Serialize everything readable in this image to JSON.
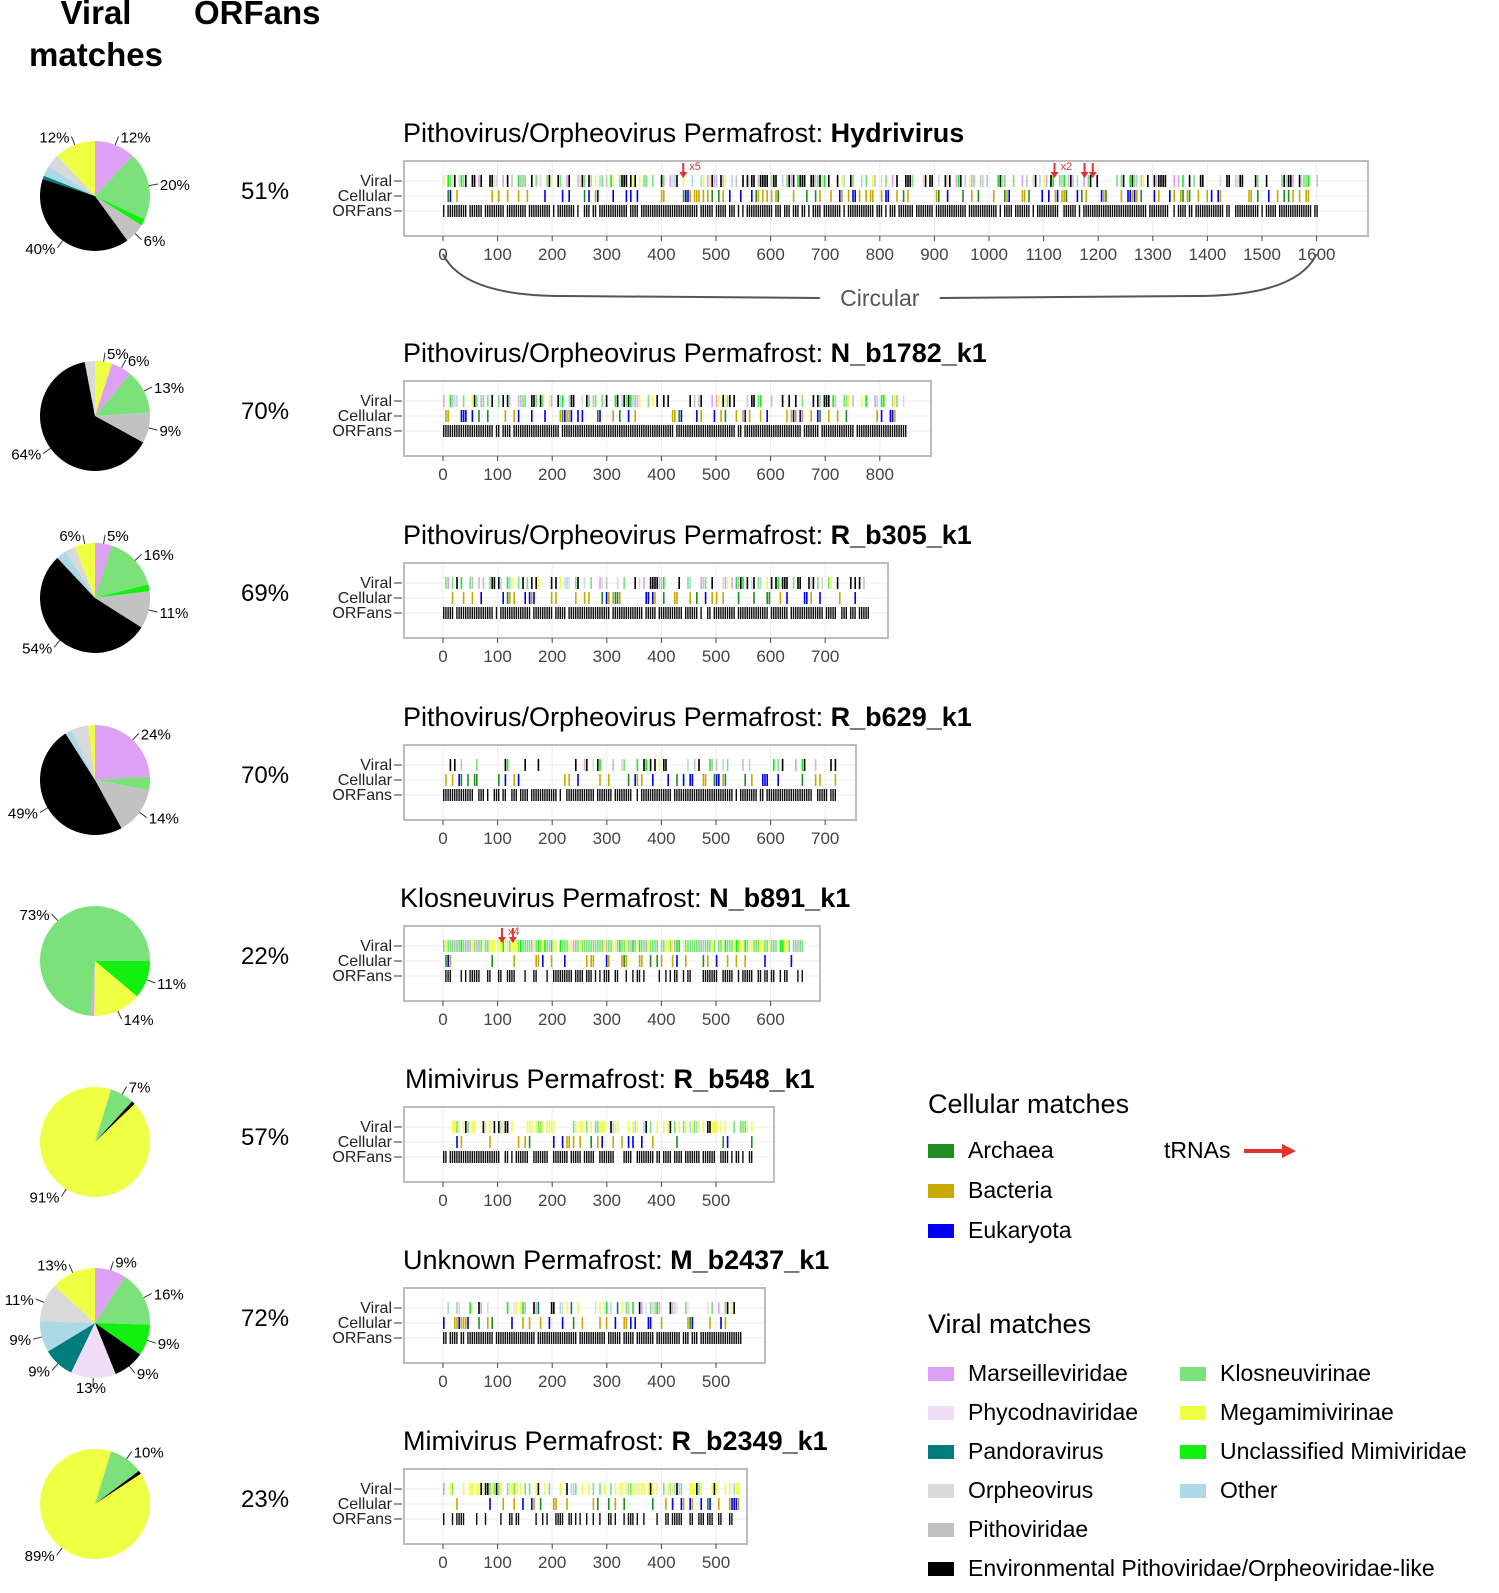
{
  "headers": {
    "viral_matches": "Viral\nmatches",
    "orfans": "ORFans"
  },
  "track_labels": [
    "Viral",
    "Cellular",
    "ORFans"
  ],
  "circular_label": "Circular",
  "colors": {
    "Archaea": "#228b22",
    "Bacteria": "#c9a800",
    "Eukaryota": "#0000ee",
    "Marseilleviridae": "#dda0f5",
    "Phycodnaviridae": "#f1ddf7",
    "Pandoravirus": "#007c7c",
    "Orpheovirus": "#d9d9d9",
    "Pithoviridae": "#c2c2c2",
    "Environmental Pithoviridae/Orpheoviridae-like": "#000000",
    "Klosneuvirinae": "#7be27b",
    "Megamimivirinae": "#eeff44",
    "Unclassified Mimiviridae": "#12f012",
    "Other": "#add8e6",
    "tRNA": "#e53030"
  },
  "legend": {
    "cellular_title": "Cellular matches",
    "cellular": [
      "Archaea",
      "Bacteria",
      "Eukaryota"
    ],
    "trna_label": "tRNAs",
    "viral_title": "Viral matches",
    "viral_left": [
      "Marseilleviridae",
      "Phycodnaviridae",
      "Pandoravirus",
      "Orpheovirus",
      "Pithoviridae",
      "Environmental Pithoviridae/Orpheoviridae-like"
    ],
    "viral_right": [
      "Klosneuvirinae",
      "Megamimivirinae",
      "Unclassified Mimiviridae",
      "Other"
    ]
  },
  "chart_data": [
    {
      "type": "pie+track",
      "group": "Pithovirus/Orpheovirus Permafrost:",
      "name": "Hydrivirus",
      "orfans_pct": "51%",
      "xmax": 1600,
      "ticks": [
        0,
        100,
        200,
        300,
        400,
        500,
        600,
        700,
        800,
        900,
        1000,
        1100,
        1200,
        1300,
        1400,
        1500,
        1600
      ],
      "circular": true,
      "pie": [
        {
          "name": "Marseilleviridae",
          "value": 12,
          "label": "12%"
        },
        {
          "name": "Klosneuvirinae",
          "value": 20,
          "label": "20%"
        },
        {
          "name": "Unclassified Mimiviridae",
          "value": 2,
          "label": ""
        },
        {
          "name": "Pithoviridae",
          "value": 6,
          "label": "6%"
        },
        {
          "name": "Environmental Pithoviridae/Orpheoviridae-like",
          "value": 40,
          "label": "40%"
        },
        {
          "name": "Pandoravirus",
          "value": 1,
          "label": ""
        },
        {
          "name": "Other",
          "value": 3,
          "label": ""
        },
        {
          "name": "Orpheovirus",
          "value": 4,
          "label": ""
        },
        {
          "name": "Megamimivirinae",
          "value": 12,
          "label": "12%"
        }
      ],
      "trnas": [
        {
          "x": 440,
          "label": "x5"
        },
        {
          "x": 1120,
          "label": "x2"
        },
        {
          "x": 1175,
          "label": ""
        },
        {
          "x": 1190,
          "label": ""
        }
      ]
    },
    {
      "type": "pie+track",
      "group": "Pithovirus/Orpheovirus Permafrost:",
      "name": "N_b1782_k1",
      "orfans_pct": "70%",
      "xmax": 850,
      "ticks": [
        0,
        100,
        200,
        300,
        400,
        500,
        600,
        700,
        800
      ],
      "pie": [
        {
          "name": "Megamimivirinae",
          "value": 5,
          "label": "5%"
        },
        {
          "name": "Marseilleviridae",
          "value": 6,
          "label": "6%"
        },
        {
          "name": "Klosneuvirinae",
          "value": 13,
          "label": "13%"
        },
        {
          "name": "Pithoviridae",
          "value": 9,
          "label": "9%"
        },
        {
          "name": "Environmental Pithoviridae/Orpheoviridae-like",
          "value": 64,
          "label": "64%"
        },
        {
          "name": "Orpheovirus",
          "value": 3,
          "label": ""
        }
      ],
      "trnas": []
    },
    {
      "type": "pie+track",
      "group": "Pithovirus/Orpheovirus Permafrost:",
      "name": "R_b305_k1",
      "orfans_pct": "69%",
      "xmax": 780,
      "ticks": [
        0,
        100,
        200,
        300,
        400,
        500,
        600,
        700
      ],
      "pie": [
        {
          "name": "Marseilleviridae",
          "value": 5,
          "label": "5%"
        },
        {
          "name": "Klosneuvirinae",
          "value": 16,
          "label": "16%"
        },
        {
          "name": "Unclassified Mimiviridae",
          "value": 2,
          "label": ""
        },
        {
          "name": "Pithoviridae",
          "value": 11,
          "label": "11%"
        },
        {
          "name": "Environmental Pithoviridae/Orpheoviridae-like",
          "value": 54,
          "label": "54%"
        },
        {
          "name": "Other",
          "value": 3,
          "label": ""
        },
        {
          "name": "Orpheovirus",
          "value": 3,
          "label": ""
        },
        {
          "name": "Megamimivirinae",
          "value": 6,
          "label": "6%"
        }
      ],
      "trnas": []
    },
    {
      "type": "pie+track",
      "group": "Pithovirus/Orpheovirus Permafrost:",
      "name": "R_b629_k1",
      "orfans_pct": "70%",
      "xmax": 720,
      "ticks": [
        0,
        100,
        200,
        300,
        400,
        500,
        600,
        700
      ],
      "pie": [
        {
          "name": "Marseilleviridae",
          "value": 24,
          "label": "24%"
        },
        {
          "name": "Klosneuvirinae",
          "value": 4,
          "label": ""
        },
        {
          "name": "Pithoviridae",
          "value": 14,
          "label": "14%"
        },
        {
          "name": "Environmental Pithoviridae/Orpheoviridae-like",
          "value": 49,
          "label": "49%"
        },
        {
          "name": "Other",
          "value": 2,
          "label": ""
        },
        {
          "name": "Orpheovirus",
          "value": 5,
          "label": ""
        },
        {
          "name": "Megamimivirinae",
          "value": 2,
          "label": ""
        }
      ],
      "trnas": []
    },
    {
      "type": "pie+track",
      "group": "Klosneuvirus Permafrost:",
      "name": "N_b891_k1",
      "orfans_pct": "22%",
      "xmax": 660,
      "ticks": [
        0,
        100,
        200,
        300,
        400,
        500,
        600
      ],
      "pie": [
        {
          "name": "Unclassified Mimiviridae",
          "value": 11,
          "label": "11%"
        },
        {
          "name": "Megamimivirinae",
          "value": 14,
          "label": "14%"
        },
        {
          "name": "Marseilleviridae",
          "value": 1,
          "label": ""
        },
        {
          "name": "Klosneuvirinae",
          "value": 73,
          "label": "73%"
        }
      ],
      "pie_start": 90,
      "trnas": [
        {
          "x": 108,
          "label": "x4"
        },
        {
          "x": 128,
          "label": ""
        }
      ]
    },
    {
      "type": "pie+track",
      "group": "Mimivirus Permafrost:",
      "name": "R_b548_k1",
      "orfans_pct": "57%",
      "xmax": 570,
      "ticks": [
        0,
        100,
        200,
        300,
        400,
        500
      ],
      "pie": [
        {
          "name": "Klosneuvirinae",
          "value": 7,
          "label": "7%"
        },
        {
          "name": "Environmental Pithoviridae/Orpheoviridae-like",
          "value": 1,
          "label": ""
        },
        {
          "name": "Megamimivirinae",
          "value": 91,
          "label": "91%"
        }
      ],
      "pie_start": 17,
      "trnas": []
    },
    {
      "type": "pie+track",
      "group": "Unknown Permafrost:",
      "name": "M_b2437_k1",
      "orfans_pct": "72%",
      "xmax": 550,
      "ticks": [
        0,
        100,
        200,
        300,
        400,
        500
      ],
      "pie": [
        {
          "name": "Marseilleviridae",
          "value": 9,
          "label": "9%"
        },
        {
          "name": "Klosneuvirinae",
          "value": 16,
          "label": "16%"
        },
        {
          "name": "Unclassified Mimiviridae",
          "value": 9,
          "label": "9%"
        },
        {
          "name": "Environmental Pithoviridae/Orpheoviridae-like",
          "value": 9,
          "label": "9%"
        },
        {
          "name": "Phycodnaviridae",
          "value": 13,
          "label": "13%"
        },
        {
          "name": "Pandoravirus",
          "value": 9,
          "label": "9%"
        },
        {
          "name": "Other",
          "value": 9,
          "label": "9%"
        },
        {
          "name": "Orpheovirus",
          "value": 11,
          "label": "11%"
        },
        {
          "name": "Megamimivirinae",
          "value": 13,
          "label": "13%"
        }
      ],
      "trnas": []
    },
    {
      "type": "pie+track",
      "group": "Mimivirus Permafrost:",
      "name": "R_b2349_k1",
      "orfans_pct": "23%",
      "xmax": 540,
      "ticks": [
        0,
        100,
        200,
        300,
        400,
        500
      ],
      "pie": [
        {
          "name": "Klosneuvirinae",
          "value": 10,
          "label": "10%"
        },
        {
          "name": "Environmental Pithoviridae/Orpheoviridae-like",
          "value": 1,
          "label": ""
        },
        {
          "name": "Megamimivirinae",
          "value": 89,
          "label": "89%"
        }
      ],
      "pie_start": 17,
      "trnas": []
    }
  ]
}
